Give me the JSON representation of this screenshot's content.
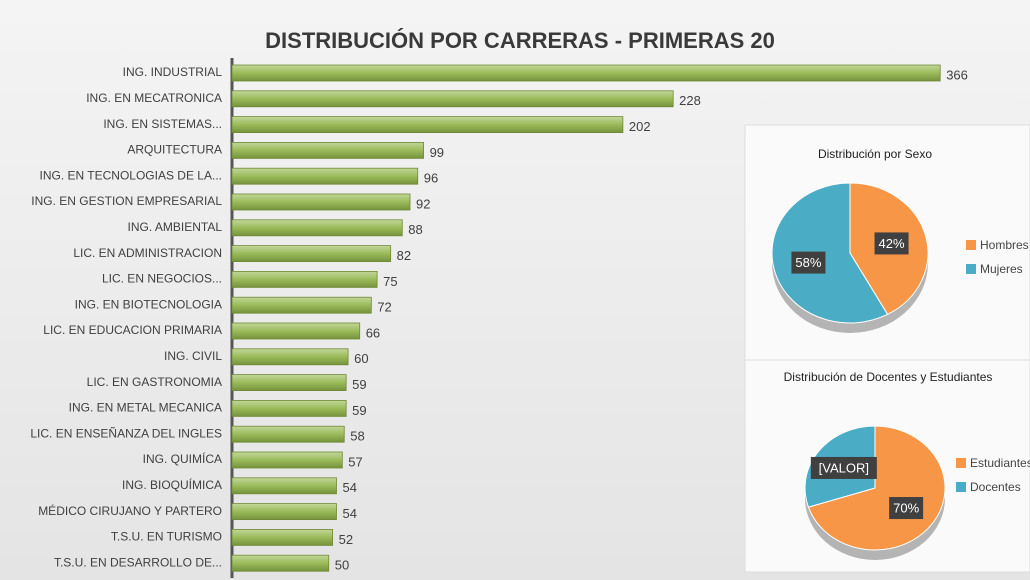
{
  "chart_data": [
    {
      "type": "barh",
      "title": "DISTRIBUCIÓN POR CARRERAS - PRIMERAS 20",
      "categories": [
        "ING. INDUSTRIAL",
        "ING. EN MECATRONICA",
        "ING. EN SISTEMAS...",
        "ARQUITECTURA",
        "ING. EN TECNOLOGIAS DE LA...",
        "ING. EN GESTION EMPRESARIAL",
        "ING. AMBIENTAL",
        "LIC. EN ADMINISTRACION",
        "LIC. EN NEGOCIOS...",
        "ING. EN BIOTECNOLOGIA",
        "LIC. EN EDUCACION PRIMARIA",
        "ING. CIVIL",
        "LIC. EN GASTRONOMIA",
        "ING. EN METAL MECANICA",
        "LIC. EN ENSEÑANZA DEL INGLES",
        "ING. QUIMÍCA",
        "ING. BIOQUÍMICA",
        "MÉDICO CIRUJANO Y PARTERO",
        "T.S.U. EN TURISMO",
        "T.S.U. EN DESARROLLO DE..."
      ],
      "values": [
        366,
        228,
        202,
        99,
        96,
        92,
        88,
        82,
        75,
        72,
        66,
        60,
        59,
        59,
        58,
        57,
        54,
        54,
        52,
        50
      ],
      "color": "#9bbb59",
      "xlim": [
        0,
        400
      ]
    },
    {
      "type": "pie",
      "title": "Distribución por Sexo",
      "categories": [
        "Hombres",
        "Mujeres"
      ],
      "values": [
        42,
        58
      ],
      "value_labels": [
        "42%",
        "58%"
      ],
      "colors": [
        "#f79646",
        "#4bacc6"
      ]
    },
    {
      "type": "pie",
      "title": "Distribución de Docentes y Estudiantes",
      "categories": [
        "Estudiantes",
        "Docentes"
      ],
      "values": [
        70,
        30
      ],
      "value_labels": [
        "70%",
        "[VALOR]"
      ],
      "colors": [
        "#f79646",
        "#4bacc6"
      ]
    }
  ]
}
